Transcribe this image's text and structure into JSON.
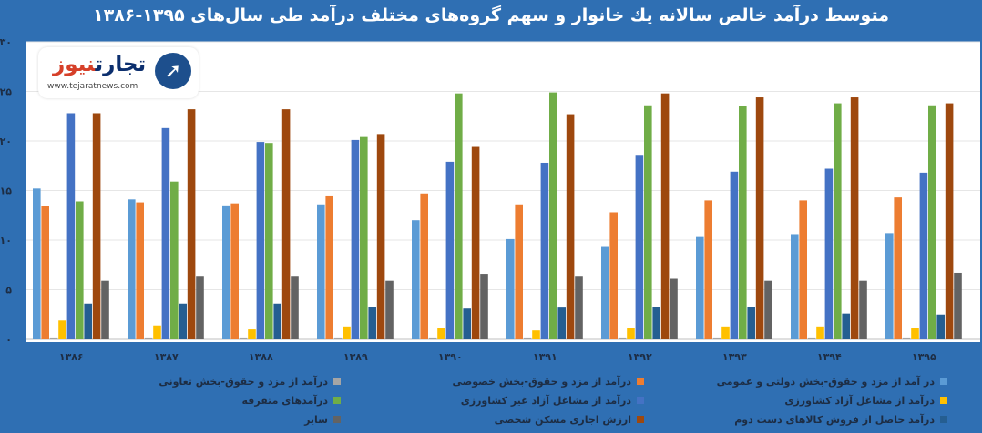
{
  "title": "متوسط درآمد خالص سالانه یك خانوار و سهم گروه‌های مختلف درآمد طی سال‌های ۱۳۹۵-۱۳۸۶",
  "logo": {
    "name_main": "تجارت",
    "name_accent": "نیوز",
    "url": "www.tejaratnews.com",
    "icon": "arrow-circle-icon"
  },
  "chart_data": {
    "type": "bar",
    "categories": [
      "۱۳۸۶",
      "۱۳۸۷",
      "۱۳۸۸",
      "۱۳۸۹",
      "۱۳۹۰",
      "۱۳۹۱",
      "۱۳۹۲",
      "۱۳۹۳",
      "۱۳۹۴",
      "۱۳۹۵"
    ],
    "y_ticks": [
      "۰",
      "۵",
      "۱۰",
      "۱۵",
      "۲۰",
      "۲۵",
      "۳۰"
    ],
    "ylim": [
      0,
      30
    ],
    "grid": true,
    "legend_position": "bottom",
    "series": [
      {
        "name": "در آمد از مزد و حقوق-بخش دولتی و عمومی",
        "color": "#5b9bd5",
        "values": [
          15.2,
          14.1,
          13.5,
          13.6,
          12,
          10.1,
          9.4,
          10.4,
          10.6,
          10.7
        ]
      },
      {
        "name": "درآمد از مزد و حقوق-بخش خصوصی",
        "color": "#ed7d31",
        "values": [
          13.4,
          13.8,
          13.7,
          14.5,
          14.7,
          13.6,
          12.8,
          14,
          14,
          14.3
        ]
      },
      {
        "name": "درآمد از مزد و حقوق-بخش تعاونی",
        "color": "#a5a5a5",
        "values": [
          0.1,
          0.1,
          0.1,
          0.1,
          0.1,
          0.1,
          0.1,
          0.1,
          0.1,
          0.1
        ]
      },
      {
        "name": "درآمد از مشاغل آزاد کشاورزی",
        "color": "#ffc000",
        "values": [
          1.9,
          1.4,
          1,
          1.3,
          1.1,
          0.9,
          1.1,
          1.3,
          1.3,
          1.1
        ]
      },
      {
        "name": "درآمد از مشاغل آزاد غیر کشاورزی",
        "color": "#4472c4",
        "values": [
          22.8,
          21.3,
          19.9,
          20.1,
          17.9,
          17.8,
          18.6,
          16.9,
          17.2,
          16.8
        ]
      },
      {
        "name": "درآمدهای متفرقه",
        "color": "#70ad47",
        "values": [
          13.9,
          15.9,
          19.8,
          20.4,
          24.8,
          24.9,
          23.6,
          23.5,
          23.8,
          23.6
        ]
      },
      {
        "name": "درآمد حاصل از فروش کالاهای دست دوم",
        "color": "#255e91",
        "values": [
          3.6,
          3.6,
          3.6,
          3.3,
          3.1,
          3.2,
          3.3,
          3.3,
          2.6,
          2.5
        ]
      },
      {
        "name": "ارزش اجاری مسکن شخصی",
        "color": "#9e480e",
        "values": [
          22.8,
          23.2,
          23.2,
          20.7,
          19.4,
          22.7,
          24.8,
          24.4,
          24.4,
          23.8
        ]
      },
      {
        "name": "سایر",
        "color": "#636363",
        "values": [
          5.9,
          6.4,
          6.4,
          5.9,
          6.6,
          6.4,
          6.1,
          5.9,
          5.9,
          6.7
        ]
      }
    ]
  }
}
